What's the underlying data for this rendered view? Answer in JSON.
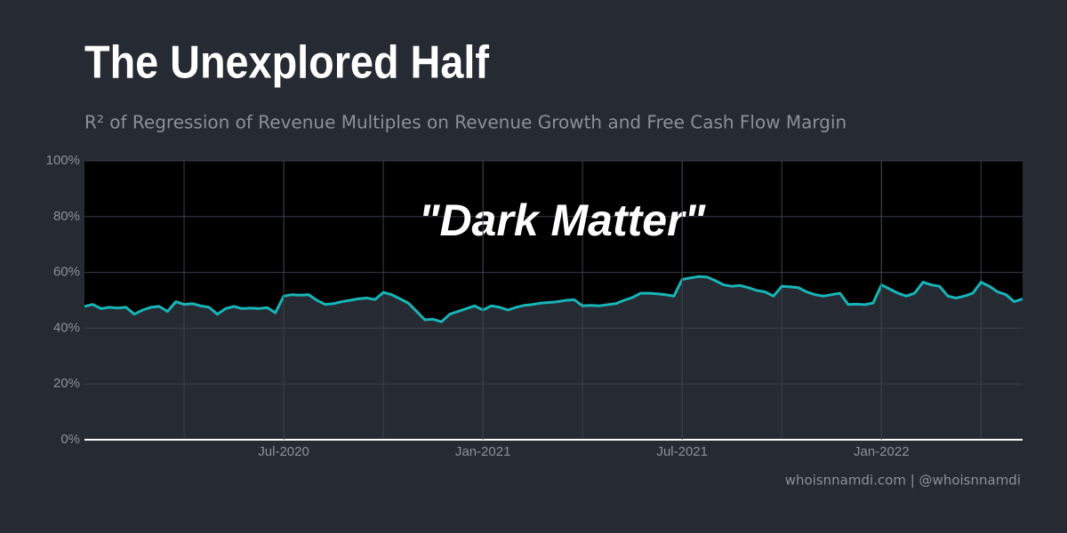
{
  "chart_data": {
    "type": "line",
    "title": "The Unexplored Half",
    "subtitle": "R² of Regression of Revenue Multiples on Revenue Growth and Free Cash Flow Margin",
    "annotation": "\"Dark Matter\"",
    "source": "whoisnnamdi.com | @whoisnnamdi",
    "color": "#17b5b8",
    "fill_above_color": "#000000",
    "grid": true,
    "x": [
      "Jan-2020",
      "Jan-2020",
      "Jan-2020",
      "Jan-2020",
      "Feb-2020",
      "Feb-2020",
      "Feb-2020",
      "Feb-2020",
      "Mar-2020",
      "Mar-2020",
      "Mar-2020",
      "Mar-2020",
      "Apr-2020",
      "Apr-2020",
      "Apr-2020",
      "Apr-2020",
      "May-2020",
      "May-2020",
      "May-2020",
      "May-2020",
      "Jun-2020",
      "Jun-2020",
      "Jun-2020",
      "Jun-2020",
      "Jul-2020",
      "Jul-2020",
      "Jul-2020",
      "Jul-2020",
      "Aug-2020",
      "Aug-2020",
      "Aug-2020",
      "Aug-2020",
      "Sep-2020",
      "Sep-2020",
      "Sep-2020",
      "Sep-2020",
      "Oct-2020",
      "Oct-2020",
      "Oct-2020",
      "Oct-2020",
      "Nov-2020",
      "Nov-2020",
      "Nov-2020",
      "Nov-2020",
      "Dec-2020",
      "Dec-2020",
      "Dec-2020",
      "Dec-2020",
      "Jan-2021",
      "Jan-2021",
      "Jan-2021",
      "Jan-2021",
      "Feb-2021",
      "Feb-2021",
      "Feb-2021",
      "Feb-2021",
      "Mar-2021",
      "Mar-2021",
      "Mar-2021",
      "Mar-2021",
      "Apr-2021",
      "Apr-2021",
      "Apr-2021",
      "Apr-2021",
      "May-2021",
      "May-2021",
      "May-2021",
      "May-2021",
      "Jun-2021",
      "Jun-2021",
      "Jun-2021",
      "Jun-2021",
      "Jul-2021",
      "Jul-2021",
      "Jul-2021",
      "Jul-2021",
      "Aug-2021",
      "Aug-2021",
      "Aug-2021",
      "Aug-2021",
      "Sep-2021",
      "Sep-2021",
      "Sep-2021",
      "Sep-2021",
      "Oct-2021",
      "Oct-2021",
      "Oct-2021",
      "Oct-2021",
      "Nov-2021",
      "Nov-2021",
      "Nov-2021",
      "Nov-2021",
      "Dec-2021",
      "Dec-2021",
      "Dec-2021",
      "Dec-2021",
      "Jan-2022",
      "Jan-2022",
      "Jan-2022",
      "Jan-2022",
      "Feb-2022",
      "Feb-2022",
      "Feb-2022",
      "Feb-2022",
      "Mar-2022",
      "Mar-2022",
      "Mar-2022",
      "Mar-2022",
      "Apr-2022",
      "Apr-2022",
      "Apr-2022",
      "Apr-2022",
      "May-2022",
      "May-2022"
    ],
    "values": [
      47.8,
      48.5,
      47,
      47.5,
      47.2,
      47.5,
      45,
      46.5,
      47.5,
      47.8,
      46,
      49.5,
      48.5,
      48.8,
      48,
      47.5,
      45,
      47,
      47.8,
      47,
      47.2,
      47,
      47.4,
      45.5,
      51.5,
      52,
      51.8,
      52,
      50,
      48.5,
      48.8,
      49.5,
      50,
      50.5,
      50.8,
      50.3,
      52.8,
      52,
      50.5,
      49,
      46,
      43,
      43.2,
      42.3,
      45,
      46,
      47,
      48,
      46.5,
      48,
      47.5,
      46.5,
      47.5,
      48.2,
      48.5,
      49,
      49.2,
      49.5,
      50,
      50.2,
      48,
      48.2,
      48,
      48.4,
      48.8,
      50,
      51,
      52.5,
      52.5,
      52.3,
      52,
      51.5,
      57.5,
      58,
      58.5,
      58.3,
      57,
      55.5,
      55,
      55.3,
      54.5,
      53.5,
      53,
      51.5,
      55,
      54.8,
      54.5,
      53,
      52,
      51.5,
      52,
      52.5,
      48.5,
      48.6,
      48.4,
      49,
      55.5,
      54,
      52.5,
      51.5,
      52.5,
      56.5,
      55.5,
      55,
      51.5,
      50.8,
      51.5,
      52.5,
      56.5,
      55,
      53,
      52,
      49.5,
      50.5
    ],
    "xticks": [
      "Jul-2020",
      "Jan-2021",
      "Jul-2021",
      "Jan-2022"
    ],
    "ylim": [
      0,
      100
    ],
    "yticks": [
      {
        "value": 0,
        "label": "0%"
      },
      {
        "value": 20,
        "label": "20%"
      },
      {
        "value": 40,
        "label": "40%"
      },
      {
        "value": 60,
        "label": "60%"
      },
      {
        "value": 80,
        "label": "80%"
      },
      {
        "value": 100,
        "label": "100%"
      }
    ]
  }
}
